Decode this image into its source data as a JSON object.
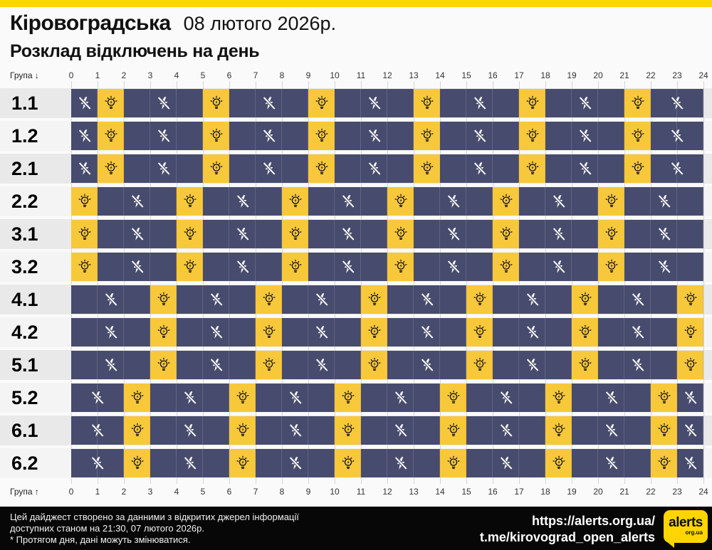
{
  "header": {
    "region": "Кіровоградська",
    "date": "08 лютого 2026р.",
    "subtitle": "Розклад відключень на день"
  },
  "axis": {
    "top_label": "Група ↓",
    "bottom_label": "Група ↑",
    "hour_ticks": [
      "0",
      "1",
      "2",
      "3",
      "4",
      "5",
      "6",
      "7",
      "8",
      "9",
      "10",
      "11",
      "12",
      "13",
      "14",
      "15",
      "16",
      "17",
      "18",
      "19",
      "20",
      "21",
      "22",
      "23",
      "24"
    ]
  },
  "colors": {
    "accent_yellow": "#ffd500",
    "cell_on": "#f7c83a",
    "cell_off": "#474b6e",
    "stripe_dark": "#e9e9e9",
    "stripe_light": "#f4f4f4",
    "footer_bg": "#070707",
    "page_bg": "#fafafa"
  },
  "icons": {
    "off": "lightning-slash-icon",
    "on": "bulb-icon"
  },
  "chart_data": {
    "type": "heatmap",
    "title": "Розклад відключень на день",
    "xlabel_range": [
      0,
      24
    ],
    "x_ticks": [
      "0",
      "1",
      "2",
      "3",
      "4",
      "5",
      "6",
      "7",
      "8",
      "9",
      "10",
      "11",
      "12",
      "13",
      "14",
      "15",
      "16",
      "17",
      "18",
      "19",
      "20",
      "21",
      "22",
      "23",
      "24"
    ],
    "cell_states": {
      "on": "power on (yellow cell, bulb icon)",
      "off": "power off (dark blue cell, crossed lightning icon)"
    },
    "rows": [
      {
        "group": "1.1",
        "power_on_hours": [
          1,
          5,
          9,
          13,
          17,
          21
        ]
      },
      {
        "group": "1.2",
        "power_on_hours": [
          1,
          5,
          9,
          13,
          17,
          21
        ]
      },
      {
        "group": "2.1",
        "power_on_hours": [
          1,
          5,
          9,
          13,
          17,
          21
        ]
      },
      {
        "group": "2.2",
        "power_on_hours": [
          0,
          4,
          8,
          12,
          16,
          20
        ]
      },
      {
        "group": "3.1",
        "power_on_hours": [
          0,
          4,
          8,
          12,
          16,
          20
        ]
      },
      {
        "group": "3.2",
        "power_on_hours": [
          0,
          4,
          8,
          12,
          16,
          20
        ]
      },
      {
        "group": "4.1",
        "power_on_hours": [
          3,
          7,
          11,
          15,
          19,
          23
        ]
      },
      {
        "group": "4.2",
        "power_on_hours": [
          3,
          7,
          11,
          15,
          19,
          23
        ]
      },
      {
        "group": "5.1",
        "power_on_hours": [
          3,
          7,
          11,
          15,
          19,
          23
        ]
      },
      {
        "group": "5.2",
        "power_on_hours": [
          2,
          6,
          10,
          14,
          18,
          22
        ]
      },
      {
        "group": "6.1",
        "power_on_hours": [
          2,
          6,
          10,
          14,
          18,
          22
        ]
      },
      {
        "group": "6.2",
        "power_on_hours": [
          2,
          6,
          10,
          14,
          18,
          22
        ]
      }
    ]
  },
  "footer": {
    "note_lines": [
      "Цей дайджест створено за данними з відкритих джерел інформації",
      "доступних станом на 21:30, 07 лютого 2026р.",
      "* Протягом дня, дані можуть змінюватися."
    ],
    "links": [
      "https://alerts.org.ua/",
      "t.me/kirovograd_open_alerts"
    ],
    "logo": {
      "text": "alerts",
      "sub": "org.ua"
    }
  }
}
